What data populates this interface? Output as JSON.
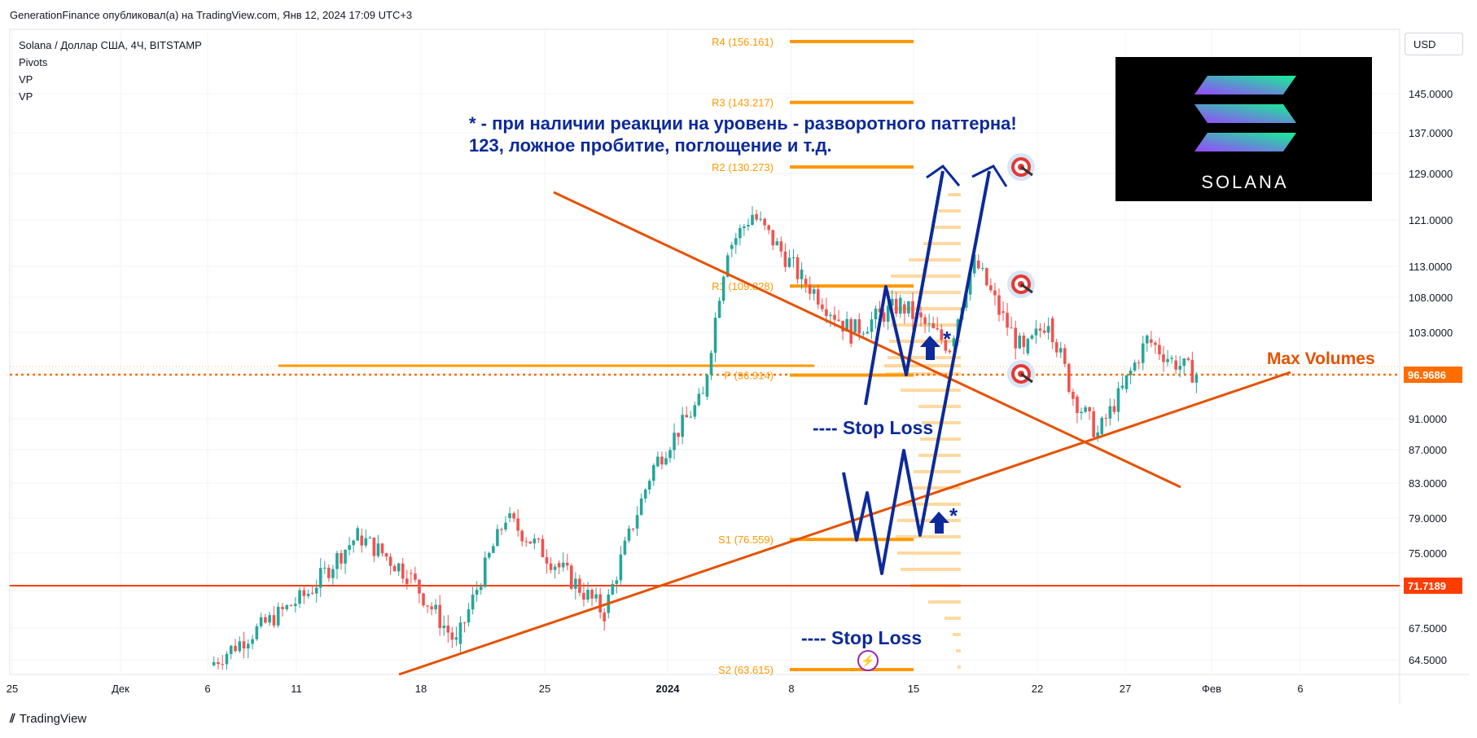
{
  "publish_line": "GenerationFinance опубликовал(а) на TradingView.com, Янв 12, 2024 17:09 UTC+3",
  "legend": {
    "symbol": "Solana / Доллар США, 4Ч, BITSTAMP",
    "indicators": [
      "Pivots",
      "VP",
      "VP"
    ]
  },
  "currency_button": "USD",
  "branding": "TradingView",
  "logo_text": "SOLANA",
  "annotation": {
    "line1": "* - при наличии реакции на уровень - разворотного паттерна!",
    "line2": "123, ложное пробитие, поглощение и т.д."
  },
  "stop_loss_upper": "---- Stop Loss",
  "stop_loss_lower": "---- Stop Loss",
  "max_volumes_label": "Max Volumes",
  "colors": {
    "up": "#26a69a",
    "down": "#ef5350",
    "orange": "#ff9800",
    "trend": "#e65100",
    "navy": "#0d2a9a",
    "text_blue": "#0d2a9a"
  },
  "chart_data": {
    "type": "candlestick",
    "symbol": "SOLUSD",
    "timeframe": "4Ч",
    "exchange": "BITSTAMP",
    "y_axis_ticks": [
      "145.0000",
      "137.0000",
      "129.0000",
      "121.0000",
      "113.0000",
      "108.0000",
      "103.0000",
      "91.0000",
      "87.0000",
      "83.0000",
      "79.0000",
      "75.0000",
      "67.5000",
      "64.5000"
    ],
    "y_ticks_values": [
      145,
      137,
      129,
      121,
      113,
      108,
      103,
      91,
      87,
      83,
      79,
      75,
      67.5,
      64.5
    ],
    "x_axis_ticks": [
      "25",
      "Дек",
      "6",
      "11",
      "18",
      "25",
      "2024",
      "8",
      "15",
      "22",
      "27",
      "Фев",
      "6"
    ],
    "price_badges": [
      {
        "label": "96.9686",
        "value": 96.9686,
        "color": "#ff6d00"
      },
      {
        "label": "71.7189",
        "value": 71.7189,
        "color": "#ff3d00"
      }
    ],
    "pivots": [
      {
        "label": "R4 (156.161)",
        "value": 156.161
      },
      {
        "label": "R3 (143.217)",
        "value": 143.217
      },
      {
        "label": "R2 (130.273)",
        "value": 130.273
      },
      {
        "label": "R1 (109.828)",
        "value": 109.828
      },
      {
        "label": "P (96.914)",
        "value": 96.914
      },
      {
        "label": "S1 (76.559)",
        "value": 76.559
      },
      {
        "label": "S2 (63.615)",
        "value": 63.615
      }
    ],
    "price_path": [
      {
        "date": "2023-12-03",
        "close": 64.0
      },
      {
        "date": "2023-12-07",
        "close": 71.0
      },
      {
        "date": "2023-12-09",
        "close": 77.0
      },
      {
        "date": "2023-12-11",
        "close": 73.0
      },
      {
        "date": "2023-12-13",
        "close": 66.0
      },
      {
        "date": "2023-12-15",
        "close": 79.0
      },
      {
        "date": "2023-12-17",
        "close": 74.0
      },
      {
        "date": "2023-12-19",
        "close": 69.0
      },
      {
        "date": "2023-12-21",
        "close": 85.0
      },
      {
        "date": "2023-12-23",
        "close": 94.0
      },
      {
        "date": "2023-12-24",
        "close": 116.0
      },
      {
        "date": "2023-12-25",
        "close": 122.0
      },
      {
        "date": "2023-12-27",
        "close": 111.0
      },
      {
        "date": "2023-12-29",
        "close": 103.0
      },
      {
        "date": "2023-12-31",
        "close": 107.0
      },
      {
        "date": "2024-01-02",
        "close": 101.0
      },
      {
        "date": "2024-01-03",
        "close": 114.0
      },
      {
        "date": "2024-01-04",
        "close": 106.0
      },
      {
        "date": "2024-01-05",
        "close": 100.0
      },
      {
        "date": "2024-01-06",
        "close": 105.0
      },
      {
        "date": "2024-01-07",
        "close": 94.0
      },
      {
        "date": "2024-01-08",
        "close": 89.0
      },
      {
        "date": "2024-01-09",
        "close": 95.0
      },
      {
        "date": "2024-01-10",
        "close": 102.0
      },
      {
        "date": "2024-01-11",
        "close": 99.0
      },
      {
        "date": "2024-01-12",
        "close": 97.0
      }
    ],
    "trend_lines": [
      {
        "name": "descending",
        "from": {
          "date": "2023-12-25",
          "price": 125.5
        },
        "to": {
          "date": "2024-01-28",
          "price": 83.0
        }
      },
      {
        "name": "ascending",
        "from": {
          "date": "2023-12-15",
          "price": 64.0
        },
        "to": {
          "date": "2024-02-04",
          "price": 97.0
        }
      }
    ],
    "horizontal_lines": [
      {
        "value": 96.9686,
        "style": "dotted"
      },
      {
        "value": 71.7189,
        "style": "solid"
      },
      {
        "value": 98.2,
        "style": "solid"
      }
    ]
  }
}
